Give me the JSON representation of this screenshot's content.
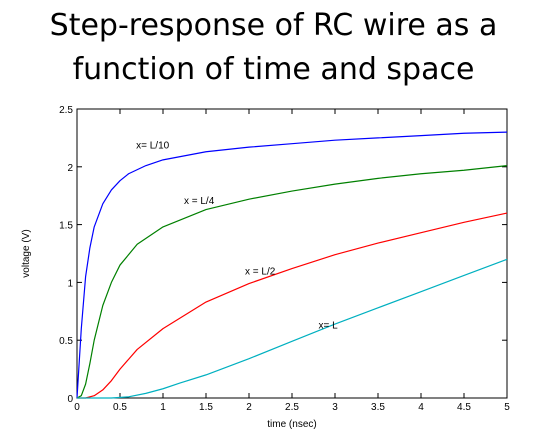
{
  "title": {
    "line1": "Step-response of RC wire as a",
    "line2": "function of time and space"
  },
  "chart_data": {
    "type": "line",
    "xlabel": "time (nsec)",
    "ylabel": "voltage (V)",
    "xlim": [
      0,
      5
    ],
    "ylim": [
      0,
      2.5
    ],
    "xticks": [
      0,
      0.5,
      1,
      1.5,
      2,
      2.5,
      3,
      3.5,
      4,
      4.5,
      5
    ],
    "xtick_labels": [
      "0",
      "0.5",
      "1",
      "1.5",
      "2",
      "2.5",
      "3",
      "3.5",
      "4",
      "4.5",
      "5"
    ],
    "yticks": [
      0,
      0.5,
      1,
      1.5,
      2,
      2.5
    ],
    "ytick_labels": [
      "0",
      "0.5",
      "1",
      "1.5",
      "2",
      "2.5"
    ],
    "grid": false,
    "series": [
      {
        "color": "#0000ff",
        "x": [
          0,
          0.05,
          0.1,
          0.15,
          0.2,
          0.3,
          0.4,
          0.5,
          0.6,
          0.8,
          1.0,
          1.5,
          2.0,
          2.5,
          3.0,
          3.5,
          4.0,
          4.5,
          5.0
        ],
        "y": [
          0,
          0.6,
          1.05,
          1.3,
          1.48,
          1.68,
          1.8,
          1.88,
          1.94,
          2.01,
          2.06,
          2.13,
          2.17,
          2.2,
          2.23,
          2.25,
          2.27,
          2.29,
          2.3
        ]
      },
      {
        "color": "#008000",
        "x": [
          0,
          0.05,
          0.1,
          0.15,
          0.2,
          0.3,
          0.4,
          0.5,
          0.7,
          1.0,
          1.5,
          2.0,
          2.5,
          3.0,
          3.5,
          4.0,
          4.5,
          5.0
        ],
        "y": [
          0,
          0.02,
          0.12,
          0.3,
          0.5,
          0.8,
          1.0,
          1.15,
          1.33,
          1.48,
          1.63,
          1.72,
          1.79,
          1.85,
          1.9,
          1.94,
          1.97,
          2.01
        ]
      },
      {
        "color": "#ff0000",
        "x": [
          0,
          0.1,
          0.2,
          0.3,
          0.4,
          0.5,
          0.7,
          1.0,
          1.5,
          2.0,
          2.5,
          3.0,
          3.5,
          4.0,
          4.5,
          5.0
        ],
        "y": [
          0,
          0.0,
          0.02,
          0.07,
          0.15,
          0.25,
          0.42,
          0.6,
          0.83,
          0.99,
          1.12,
          1.24,
          1.34,
          1.43,
          1.52,
          1.6
        ]
      },
      {
        "color": "#00b0c0",
        "x": [
          0,
          0.4,
          0.6,
          0.8,
          1.0,
          1.2,
          1.5,
          2.0,
          2.5,
          3.0,
          3.5,
          4.0,
          4.5,
          5.0
        ],
        "y": [
          0,
          0.0,
          0.01,
          0.04,
          0.08,
          0.13,
          0.2,
          0.34,
          0.49,
          0.64,
          0.78,
          0.92,
          1.06,
          1.2
        ]
      }
    ],
    "annotations": [
      {
        "text": "x= L/10",
        "x": 0.88,
        "y": 2.16
      },
      {
        "text": "x = L/4",
        "x": 1.42,
        "y": 1.68
      },
      {
        "text": "x = L/2",
        "x": 2.13,
        "y": 1.07
      },
      {
        "text": "x= L",
        "x": 2.92,
        "y": 0.6
      }
    ]
  }
}
